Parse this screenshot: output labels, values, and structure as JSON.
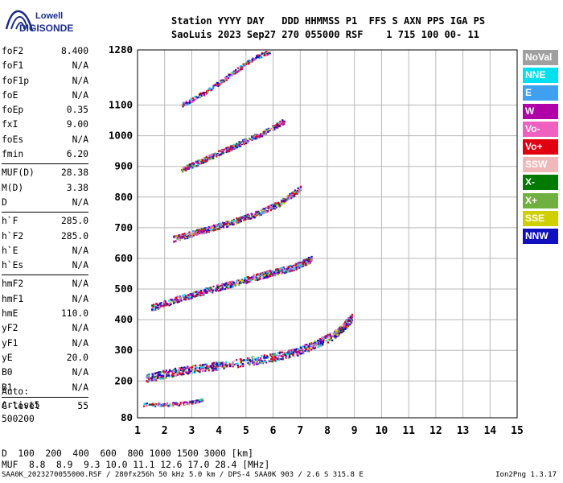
{
  "logo": {
    "line1": "Lowell",
    "line2": "DIGISONDE"
  },
  "header": {
    "line1": "Station YYYY DAY   DDD HHMMSS P1  FFS S AXN PPS IGA PS",
    "line2": "SaoLuis 2023 Sep27 270 055000 RSF    1 715 100 00- 11"
  },
  "params": [
    [
      {
        "label": "foF2",
        "value": "8.400"
      },
      {
        "label": "foF1",
        "value": "N/A"
      },
      {
        "label": "foF1p",
        "value": "N/A"
      },
      {
        "label": "foE",
        "value": "N/A"
      },
      {
        "label": "foEp",
        "value": "0.35"
      },
      {
        "label": "fxI",
        "value": "9.00"
      },
      {
        "label": "foEs",
        "value": "N/A"
      },
      {
        "label": "fmin",
        "value": "6.20"
      }
    ],
    [
      {
        "label": "MUF(D)",
        "value": "28.38"
      },
      {
        "label": "M(D)",
        "value": "3.38"
      },
      {
        "label": "D",
        "value": "N/A"
      }
    ],
    [
      {
        "label": "h`F",
        "value": "285.0"
      },
      {
        "label": "h`F2",
        "value": "285.0"
      },
      {
        "label": "h`E",
        "value": "N/A"
      },
      {
        "label": "h`Es",
        "value": "N/A"
      }
    ],
    [
      {
        "label": "hmF2",
        "value": "N/A"
      },
      {
        "label": "hmF1",
        "value": "N/A"
      },
      {
        "label": "hmE",
        "value": "110.0"
      },
      {
        "label": "yF2",
        "value": "N/A"
      },
      {
        "label": "yF1",
        "value": "N/A"
      },
      {
        "label": "yE",
        "value": "20.0"
      },
      {
        "label": "B0",
        "value": "N/A"
      },
      {
        "label": "B1",
        "value": "N/A"
      }
    ],
    [
      {
        "label": "C-level",
        "value": "55"
      }
    ]
  ],
  "extra": [
    "Auto:",
    "Artist5",
    "500200"
  ],
  "legend": [
    {
      "label": "NoVal",
      "color": "#a0a0a0"
    },
    {
      "label": "NNE",
      "color": "#00e0f0"
    },
    {
      "label": "E",
      "color": "#3fa0f0"
    },
    {
      "label": "W",
      "color": "#b000a8"
    },
    {
      "label": "Vo-",
      "color": "#f060c0"
    },
    {
      "label": "Vo+",
      "color": "#e00010"
    },
    {
      "label": "SSW",
      "color": "#f0b8b8"
    },
    {
      "label": "X-",
      "color": "#007a00"
    },
    {
      "label": "X+",
      "color": "#70b040"
    },
    {
      "label": "SSE",
      "color": "#d0d000"
    },
    {
      "label": "NNW",
      "color": "#1010c0"
    }
  ],
  "table": {
    "row1_label": "D",
    "row1": "  100  200  400  600  800 1000 1500 3000 [km]",
    "row2_label": "MUF",
    "row2": "  8.8  8.9  9.3 10.0 11.1 12.6 17.0 28.4 [MHz]"
  },
  "footer": {
    "left": "SAA0K_2023270055000.RSF / 280fx256h 50 kHz 5.0 km / DPS-4 SAA0K 903 / 2.6 S 315.8 E",
    "right": "Ion2Png 1.3.17"
  },
  "chart_data": {
    "type": "scatter",
    "title": "",
    "xlabel": "",
    "ylabel": "",
    "xlim": [
      1,
      15
    ],
    "ylim": [
      80,
      1280
    ],
    "x_ticks": [
      1,
      2,
      3,
      4,
      5,
      6,
      7,
      8,
      9,
      10,
      11,
      12,
      13,
      14,
      15
    ],
    "y_ticks": [
      80,
      200,
      300,
      400,
      500,
      600,
      700,
      800,
      900,
      1000,
      1100,
      1280
    ],
    "grid": true,
    "series": [
      {
        "name": "F trace",
        "x": [
          1.3,
          2.0,
          3.0,
          4.0,
          5.0,
          6.0,
          6.8,
          7.5,
          8.2,
          8.6,
          8.9
        ],
        "y": [
          210,
          225,
          240,
          252,
          265,
          280,
          295,
          320,
          350,
          380,
          410
        ]
      },
      {
        "name": "2F trace",
        "x": [
          1.5,
          2.5,
          3.5,
          4.5,
          5.5,
          6.2,
          6.8,
          7.4
        ],
        "y": [
          440,
          470,
          495,
          520,
          545,
          560,
          575,
          600
        ]
      },
      {
        "name": "3F trace",
        "x": [
          2.3,
          3.3,
          4.3,
          5.3,
          6.2,
          7.0
        ],
        "y": [
          665,
          690,
          715,
          745,
          780,
          830
        ]
      },
      {
        "name": "4F trace",
        "x": [
          2.6,
          3.6,
          4.6,
          5.6,
          6.4
        ],
        "y": [
          890,
          930,
          970,
          1010,
          1050
        ]
      },
      {
        "name": "5F trace",
        "x": [
          2.6,
          3.6,
          4.4,
          5.2,
          5.9
        ],
        "y": [
          1100,
          1150,
          1200,
          1250,
          1280
        ]
      },
      {
        "name": "low echoes",
        "x": [
          1.2,
          2.0,
          2.8,
          3.4
        ],
        "y": [
          125,
          125,
          130,
          140
        ]
      }
    ]
  }
}
